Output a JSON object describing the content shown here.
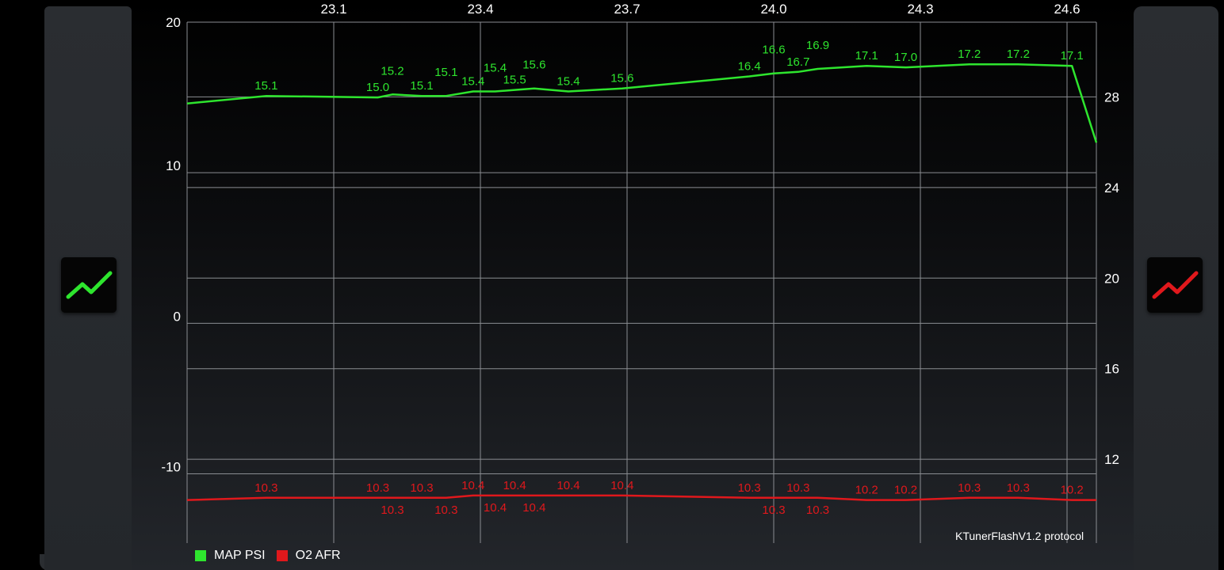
{
  "chart_data": {
    "type": "line",
    "x_ticks": [
      "23.1",
      "23.4",
      "23.7",
      "24.0",
      "24.3",
      "24.6"
    ],
    "x_tick_values": [
      23.1,
      23.4,
      23.7,
      24.0,
      24.3,
      24.6
    ],
    "xlim": [
      22.8,
      24.66
    ],
    "left_axis": {
      "ticks": [
        "20",
        "10",
        "0",
        "-10"
      ],
      "tick_values": [
        20,
        10,
        0,
        -10
      ],
      "ylim": [
        -14.6,
        20
      ]
    },
    "right_axis": {
      "ticks": [
        "28",
        "24",
        "20",
        "16",
        "12"
      ],
      "tick_values": [
        28,
        24,
        20,
        16,
        12
      ],
      "ylim": [
        8.3,
        31.3
      ]
    },
    "grid": true,
    "legend_placement": "bottom-left",
    "x": [
      22.8,
      22.962,
      23.19,
      23.22,
      23.28,
      23.33,
      23.385,
      23.43,
      23.47,
      23.51,
      23.58,
      23.69,
      23.95,
      24.0,
      24.05,
      24.09,
      24.19,
      24.27,
      24.4,
      24.5,
      24.61,
      24.66
    ],
    "labeled": [
      false,
      true,
      true,
      true,
      true,
      true,
      true,
      true,
      true,
      true,
      true,
      true,
      true,
      true,
      true,
      true,
      true,
      true,
      true,
      true,
      true,
      false
    ],
    "series": [
      {
        "name": "MAP PSI",
        "axis": "left",
        "color": "#2ee52e",
        "values": [
          14.6,
          15.1,
          15.0,
          15.2,
          15.1,
          15.1,
          15.4,
          15.4,
          15.5,
          15.6,
          15.4,
          15.6,
          16.4,
          16.6,
          16.7,
          16.9,
          17.1,
          17.0,
          17.2,
          17.2,
          17.1,
          12.0
        ],
        "labels": [
          "",
          "15.1",
          "15.0",
          "15.2",
          "15.1",
          "15.1",
          "15.4",
          "15.4",
          "15.5",
          "15.6",
          "15.4",
          "15.6",
          "16.4",
          "16.6",
          "16.7",
          "16.9",
          "17.1",
          "17.0",
          "17.2",
          "17.2",
          "17.1",
          ""
        ]
      },
      {
        "name": "O2 AFR",
        "axis": "right",
        "color": "#e0181c",
        "values": [
          10.2,
          10.3,
          10.3,
          10.3,
          10.3,
          10.3,
          10.4,
          10.4,
          10.4,
          10.4,
          10.4,
          10.4,
          10.3,
          10.3,
          10.3,
          10.3,
          10.2,
          10.2,
          10.3,
          10.3,
          10.2,
          10.2
        ],
        "labels": [
          "",
          "10.3",
          "10.3",
          "10.3",
          "10.3",
          "10.3",
          "10.4",
          "10.4",
          "10.4",
          "10.4",
          "10.4",
          "10.4",
          "10.3",
          "10.3",
          "10.3",
          "10.3",
          "10.2",
          "10.2",
          "10.3",
          "10.3",
          "10.2",
          ""
        ]
      }
    ]
  },
  "legend": {
    "items": [
      {
        "label": "MAP PSI",
        "color": "#2ee52e"
      },
      {
        "label": "O2 AFR",
        "color": "#e0181c"
      }
    ]
  },
  "footer": {
    "protocol": "KTunerFlashV1.2 protocol"
  },
  "buttons": {
    "left_icon": "chart-line-icon",
    "left_color": "#2ee52e",
    "right_icon": "chart-line-icon",
    "right_color": "#e0181c"
  }
}
